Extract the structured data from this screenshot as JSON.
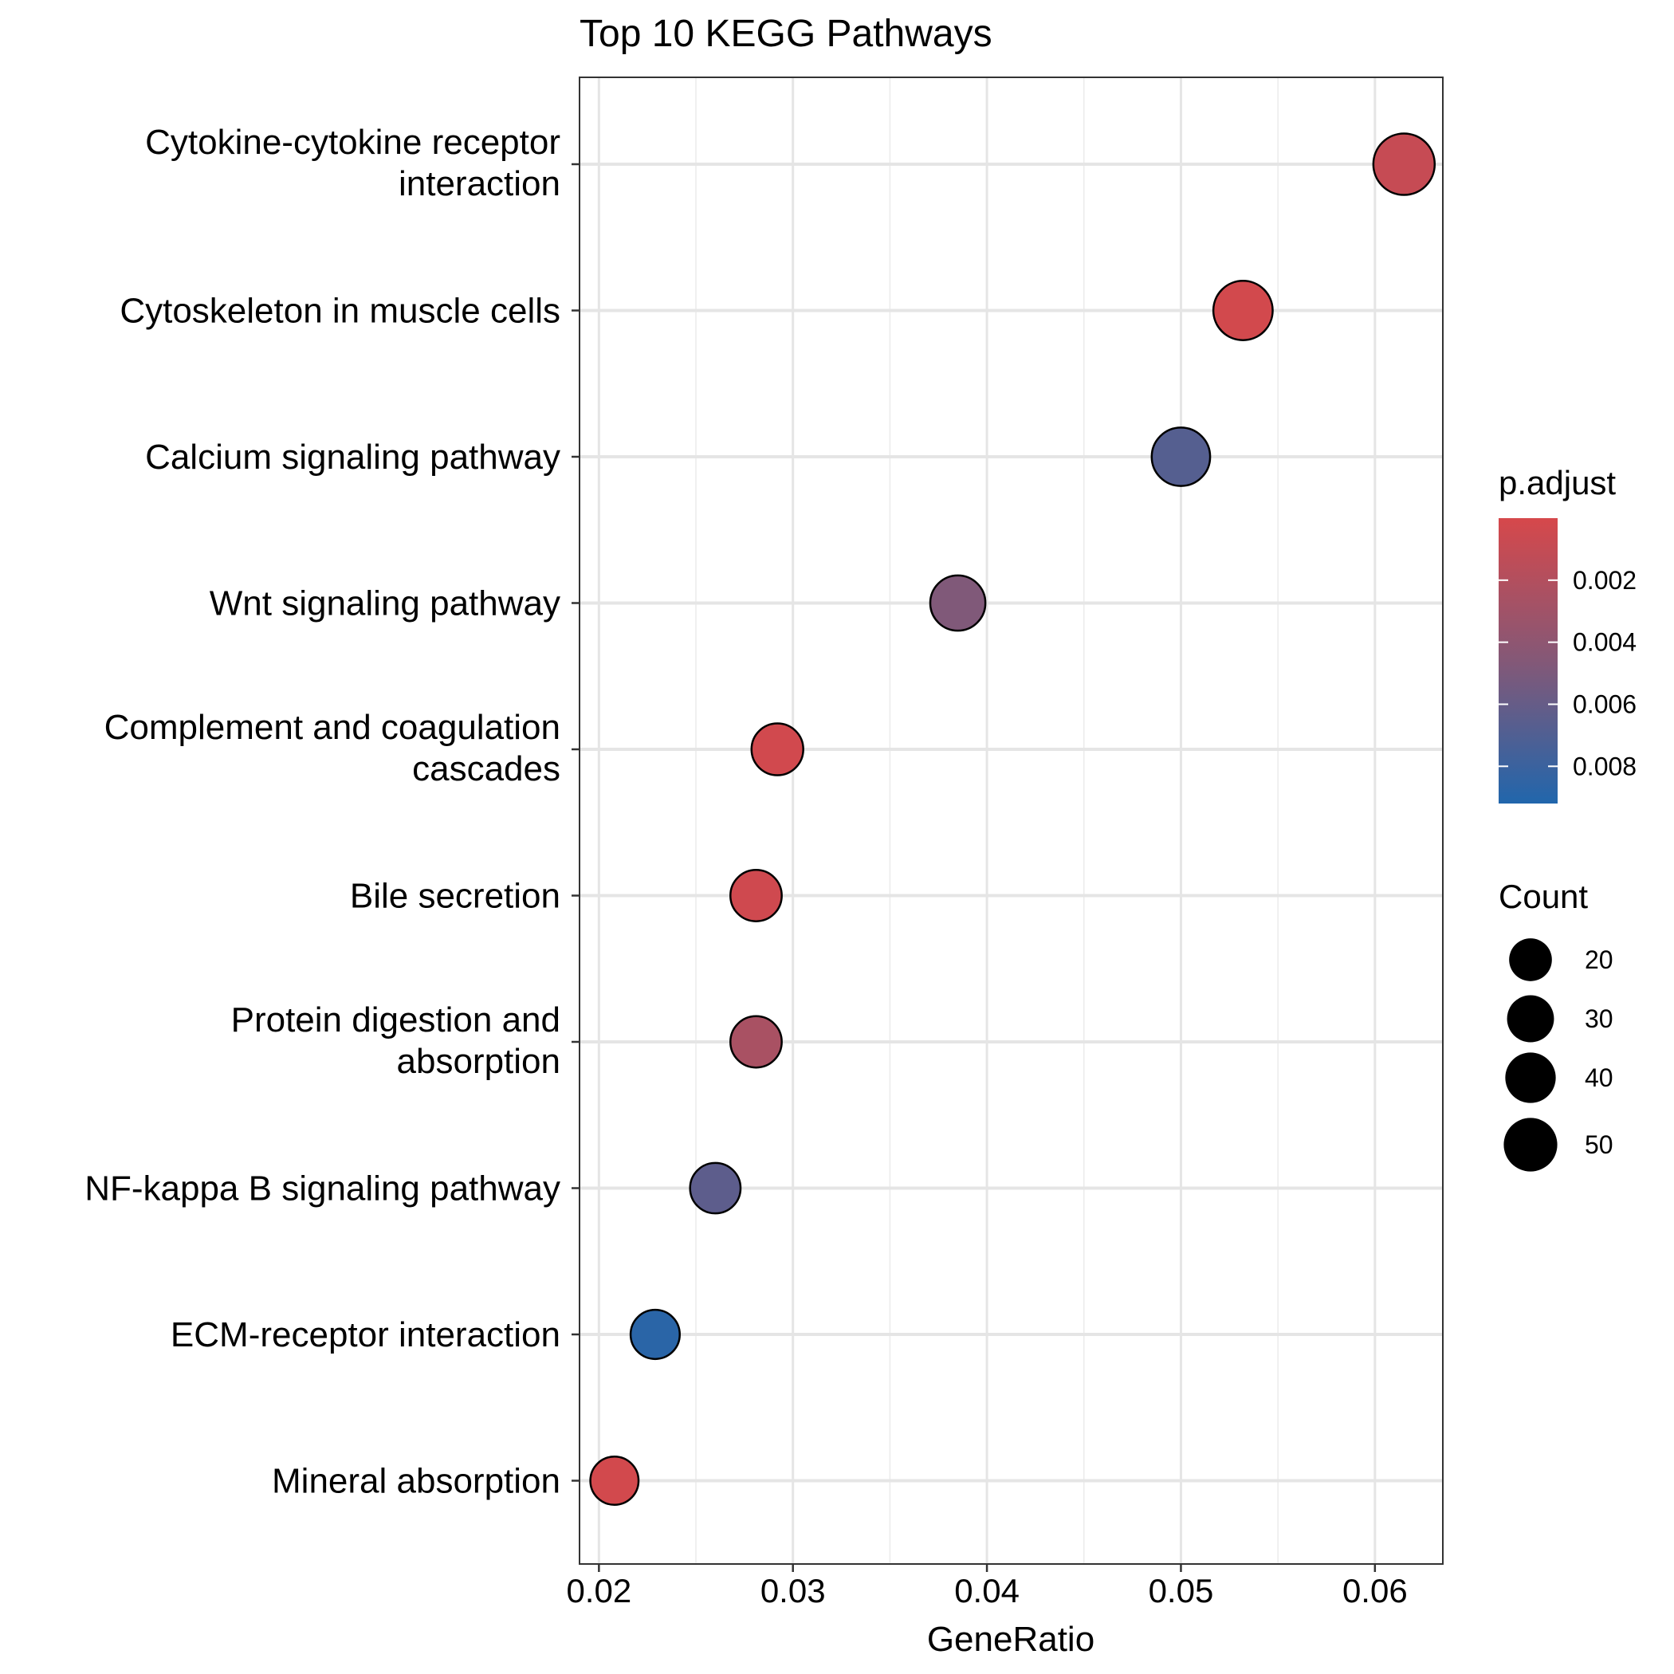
{
  "chart_data": {
    "type": "scatter",
    "title": "Top 10 KEGG Pathways",
    "xlabel": "GeneRatio",
    "ylabel": "",
    "xlim": [
      0.019,
      0.0635
    ],
    "x_ticks": [
      "0.02",
      "0.03",
      "0.04",
      "0.05",
      "0.06"
    ],
    "x_tick_values": [
      0.02,
      0.03,
      0.04,
      0.05,
      0.06
    ],
    "x_minor_values": [
      0.025,
      0.035,
      0.045,
      0.055
    ],
    "grid": true,
    "legend_position": "right",
    "categories": [
      "Cytokine-cytokine receptor interaction",
      "Cytoskeleton in muscle cells",
      "Calcium signaling pathway",
      "Wnt signaling pathway",
      "Complement and coagulation cascades",
      "Bile secretion",
      "Protein digestion and absorption",
      "NF-kappa B signaling pathway",
      "ECM-receptor interaction",
      "Mineral absorption"
    ],
    "category_labels": [
      [
        "Cytokine-cytokine receptor",
        "interaction"
      ],
      [
        "Cytoskeleton in muscle cells"
      ],
      [
        "Calcium signaling pathway"
      ],
      [
        "Wnt signaling pathway"
      ],
      [
        "Complement and coagulation",
        "cascades"
      ],
      [
        "Bile secretion"
      ],
      [
        "Protein digestion and",
        "absorption"
      ],
      [
        "NF-kappa B signaling pathway"
      ],
      [
        "ECM-receptor interaction"
      ],
      [
        "Mineral absorption"
      ]
    ],
    "points": [
      {
        "pathway": "Cytokine-cytokine receptor interaction",
        "gene_ratio": 0.0615,
        "count": 55,
        "p_adjust": 0.0009
      },
      {
        "pathway": "Cytoskeleton in muscle cells",
        "gene_ratio": 0.0532,
        "count": 48,
        "p_adjust": 0.0002
      },
      {
        "pathway": "Calcium signaling pathway",
        "gene_ratio": 0.05,
        "count": 45,
        "p_adjust": 0.0068
      },
      {
        "pathway": "Wnt signaling pathway",
        "gene_ratio": 0.0385,
        "count": 35,
        "p_adjust": 0.0048
      },
      {
        "pathway": "Complement and coagulation cascades",
        "gene_ratio": 0.0292,
        "count": 26,
        "p_adjust": 0.0003
      },
      {
        "pathway": "Bile secretion",
        "gene_ratio": 0.0281,
        "count": 25,
        "p_adjust": 0.0004
      },
      {
        "pathway": "Protein digestion and absorption",
        "gene_ratio": 0.0281,
        "count": 25,
        "p_adjust": 0.0025
      },
      {
        "pathway": "NF-kappa B signaling pathway",
        "gene_ratio": 0.026,
        "count": 23,
        "p_adjust": 0.0064
      },
      {
        "pathway": "ECM-receptor interaction",
        "gene_ratio": 0.0229,
        "count": 20,
        "p_adjust": 0.0088
      },
      {
        "pathway": "Mineral absorption",
        "gene_ratio": 0.0208,
        "count": 18,
        "p_adjust": 0.0002
      }
    ],
    "color_legend": {
      "title": "p.adjust",
      "low_color": "#D6484B",
      "mid_color": "#845877",
      "high_color": "#2166AC",
      "range": [
        0.0,
        0.0092
      ],
      "ticks": [
        "0.002",
        "0.004",
        "0.006",
        "0.008"
      ],
      "tick_values": [
        0.002,
        0.004,
        0.006,
        0.008
      ]
    },
    "size_legend": {
      "title": "Count",
      "values": [
        20,
        30,
        40,
        50
      ],
      "labels": [
        "20",
        "30",
        "40",
        "50"
      ]
    }
  }
}
